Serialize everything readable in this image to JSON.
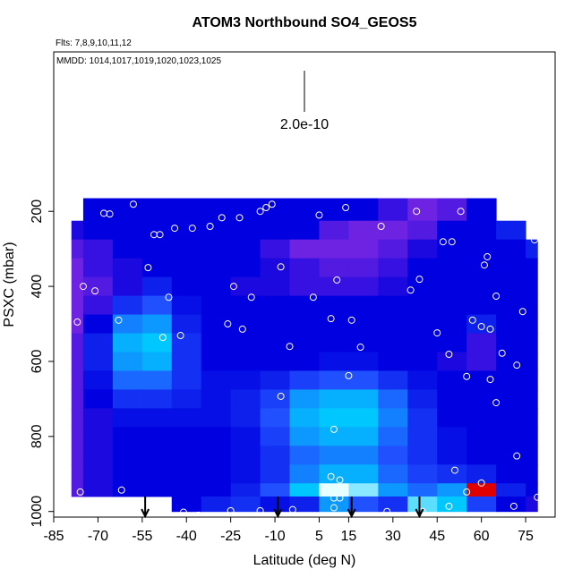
{
  "chart_data": {
    "type": "curtain",
    "title": "ATOM3 Northbound SO4_GEOS5",
    "subtitle": "Flts: 7,8,9,10,11,12",
    "annotation": "MMDD: 1014,1017,1019,1020,1023,1025",
    "scale_label": "2.0e-10",
    "x_label": "Latitude (deg N)",
    "y_label": "PSXC (mbar)",
    "xlim": [
      -85,
      85
    ],
    "ylim": [
      1015,
      -225
    ],
    "xticks": [
      -85,
      -70,
      -55,
      -40,
      -25,
      -10,
      5,
      15,
      30,
      45,
      60,
      75
    ],
    "yticks": [
      200,
      400,
      600,
      800,
      1000
    ],
    "lat_edges": [
      -79,
      -75,
      -65,
      -55,
      -45,
      -35,
      -25,
      -15,
      -5,
      5,
      15,
      25,
      35,
      45,
      55,
      65,
      75,
      79
    ],
    "pressure_edges": [
      165,
      225,
      275,
      325,
      375,
      425,
      475,
      525,
      575,
      625,
      675,
      725,
      775,
      825,
      875,
      925,
      960,
      1000
    ],
    "colorscale": [
      [
        5e-11,
        "#8a2be2"
      ],
      [
        1e-10,
        "#0000e0"
      ],
      [
        1.5e-10,
        "#2050ff"
      ],
      [
        2e-10,
        "#00c8ff"
      ],
      [
        2.5e-10,
        "#e8ffff"
      ],
      [
        3.5e-10,
        "#e00000"
      ]
    ],
    "values": [
      [
        null,
        1e-10,
        1e-10,
        1e-10,
        1e-10,
        1e-10,
        1e-10,
        1e-10,
        1e-10,
        1e-10,
        1e-10,
        8e-11,
        6e-11,
        7e-11,
        1e-10,
        null,
        null
      ],
      [
        9e-11,
        1e-10,
        1e-10,
        1e-10,
        1e-10,
        1e-10,
        1e-10,
        1e-10,
        1e-10,
        7e-11,
        6e-11,
        6e-11,
        7e-11,
        1e-10,
        1e-10,
        1.2e-10,
        null
      ],
      [
        7e-11,
        8e-11,
        1e-10,
        1e-10,
        1e-10,
        1e-10,
        1e-10,
        8e-11,
        6e-11,
        6e-11,
        6e-11,
        7e-11,
        9e-11,
        1e-10,
        1e-10,
        1e-10,
        1.2e-10
      ],
      [
        6e-11,
        8e-11,
        9e-11,
        1e-10,
        1e-10,
        1e-10,
        1e-10,
        9e-11,
        8e-11,
        7e-11,
        7e-11,
        8e-11,
        1e-10,
        1e-10,
        1e-10,
        1e-10,
        1e-10
      ],
      [
        6e-11,
        7e-11,
        9e-11,
        1.2e-10,
        1e-10,
        1e-10,
        9e-11,
        9e-11,
        8e-11,
        8e-11,
        8e-11,
        9e-11,
        1e-10,
        1e-10,
        1e-10,
        1e-10,
        1e-10
      ],
      [
        6e-11,
        8e-11,
        1.3e-10,
        1.5e-10,
        1.1e-10,
        1e-10,
        1e-10,
        1e-10,
        1e-10,
        1e-10,
        1e-10,
        1e-10,
        1e-10,
        1e-10,
        1e-10,
        1e-10,
        1e-10
      ],
      [
        6e-11,
        1e-10,
        1.7e-10,
        1.8e-10,
        1.2e-10,
        1e-10,
        1e-10,
        1e-10,
        1e-10,
        1e-10,
        1e-10,
        1e-10,
        1e-10,
        1e-10,
        1.2e-10,
        1e-10,
        1e-10
      ],
      [
        7e-11,
        1.2e-10,
        1.9e-10,
        2e-10,
        1.3e-10,
        1e-10,
        1e-10,
        1e-10,
        1e-10,
        1e-10,
        1e-10,
        1e-10,
        1e-10,
        1e-10,
        8e-11,
        1e-10,
        1e-10
      ],
      [
        7e-11,
        1.2e-10,
        1.8e-10,
        1.9e-10,
        1.3e-10,
        1e-10,
        1e-10,
        1e-10,
        1e-10,
        1.1e-10,
        1.1e-10,
        1e-10,
        1e-10,
        9e-11,
        8e-11,
        1e-10,
        1e-10
      ],
      [
        7e-11,
        1.1e-10,
        1.6e-10,
        1.6e-10,
        1.3e-10,
        1.1e-10,
        1.1e-10,
        1.2e-10,
        1.4e-10,
        1.5e-10,
        1.5e-10,
        1.3e-10,
        1.1e-10,
        1e-10,
        1e-10,
        1e-10,
        1e-10
      ],
      [
        7e-11,
        1e-10,
        1.3e-10,
        1.3e-10,
        1.2e-10,
        1.1e-10,
        1.2e-10,
        1.4e-10,
        1.8e-10,
        1.9e-10,
        1.9e-10,
        1.6e-10,
        1.2e-10,
        1e-10,
        1e-10,
        1e-10,
        1e-10
      ],
      [
        7e-11,
        9e-11,
        1.1e-10,
        1.1e-10,
        1.1e-10,
        1.1e-10,
        1.2e-10,
        1.5e-10,
        1.9e-10,
        2e-10,
        2e-10,
        1.7e-10,
        1.3e-10,
        1e-10,
        1e-10,
        1e-10,
        1e-10
      ],
      [
        7e-11,
        9e-11,
        1e-10,
        1e-10,
        1e-10,
        1e-10,
        1.1e-10,
        1.4e-10,
        1.8e-10,
        1.9e-10,
        1.9e-10,
        1.6e-10,
        1.3e-10,
        1.1e-10,
        1e-10,
        1e-10,
        1e-10
      ],
      [
        7e-11,
        9e-11,
        1e-10,
        1e-10,
        1e-10,
        1e-10,
        1.1e-10,
        1.3e-10,
        1.6e-10,
        1.7e-10,
        1.7e-10,
        1.5e-10,
        1.3e-10,
        1.1e-10,
        1e-10,
        1e-10,
        1e-10
      ],
      [
        7e-11,
        9e-11,
        1e-10,
        1e-10,
        1e-10,
        1e-10,
        1.1e-10,
        1.3e-10,
        1.7e-10,
        1.9e-10,
        1.9e-10,
        1.6e-10,
        1.4e-10,
        1.3e-10,
        1.2e-10,
        1e-10,
        1e-10
      ],
      [
        7e-11,
        9e-11,
        1e-10,
        1e-10,
        1e-10,
        1e-10,
        1.2e-10,
        1.5e-10,
        2e-10,
        2.5e-10,
        2.3e-10,
        1.8e-10,
        1.6e-10,
        1.8e-10,
        3.5e-10,
        1.2e-10,
        1e-10
      ],
      [
        null,
        null,
        null,
        null,
        1e-10,
        1.2e-10,
        1.3e-10,
        1.1e-10,
        1.2e-10,
        1.8e-10,
        1.5e-10,
        1.3e-10,
        2.2e-10,
        2e-10,
        1.4e-10,
        1e-10,
        9e-11
      ]
    ],
    "obs_lat": [
      -58,
      -68,
      -66,
      -79,
      -51,
      -49,
      -44,
      -38,
      -32,
      -28,
      -22,
      -15,
      -13,
      -11,
      5,
      14,
      26,
      38,
      53,
      47,
      50,
      62,
      78,
      61,
      -53,
      -24,
      -8,
      -75,
      -71,
      -46,
      -18,
      3,
      11,
      36,
      39,
      65,
      74,
      -77,
      -63,
      -48,
      -42,
      -26,
      -21,
      9,
      16,
      45,
      57,
      60,
      63,
      -5,
      19,
      49,
      67,
      72,
      63,
      55,
      15,
      -8,
      10,
      65,
      72,
      51,
      9,
      12,
      55,
      60,
      -76,
      -62,
      79,
      10,
      10,
      12,
      -4,
      -15,
      -25,
      -41,
      -36,
      28,
      40,
      49,
      71
    ],
    "obs_p": [
      181,
      205,
      207,
      214,
      262,
      262,
      245,
      245,
      240,
      217,
      217,
      200,
      190,
      181,
      210,
      190,
      240,
      200,
      200,
      281,
      281,
      321,
      276,
      343,
      350,
      400,
      348,
      400,
      412,
      429,
      429,
      429,
      383,
      410,
      381,
      426,
      467,
      495,
      490,
      536,
      531,
      500,
      514,
      486,
      490,
      524,
      490,
      507,
      514,
      560,
      562,
      581,
      578,
      610,
      648,
      640,
      638,
      693,
      781,
      710,
      852,
      890,
      907,
      916,
      948,
      924,
      948,
      943,
      962,
      964,
      990,
      964,
      995,
      998,
      998,
      1002,
      1010,
      1000,
      1000,
      986,
      986
    ],
    "arrows_lat": [
      -54,
      -9,
      16,
      39
    ]
  }
}
